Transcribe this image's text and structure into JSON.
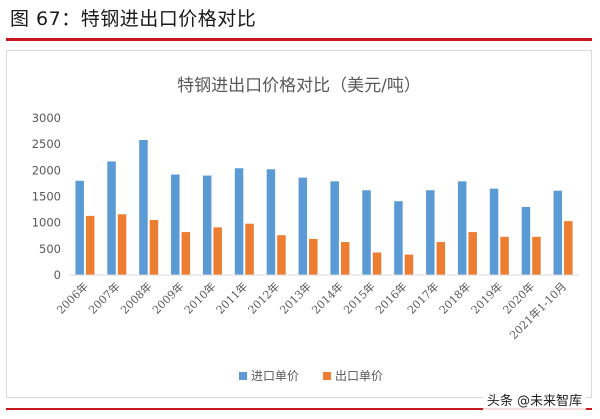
{
  "figure_heading": "图 67：特钢进出口价格对比",
  "watermark": "头条 @未来智库",
  "colors": {
    "accent_red": "#c8171e",
    "import": "#5b9bd5",
    "export": "#ed7d31",
    "axis": "#d9d9d9",
    "text": "#595959"
  },
  "chart_data": {
    "type": "bar",
    "title": "特钢进出口价格对比（美元/吨）",
    "xlabel": "",
    "ylabel": "",
    "ylim": [
      0,
      3000
    ],
    "yticks": [
      0,
      500,
      1000,
      1500,
      2000,
      2500,
      3000
    ],
    "grid": false,
    "legend_position": "bottom",
    "categories": [
      "2006年",
      "2007年",
      "2008年",
      "2009年",
      "2010年",
      "2011年",
      "2012年",
      "2013年",
      "2014年",
      "2015年",
      "2016年",
      "2017年",
      "2018年",
      "2019年",
      "2020年",
      "2021年1-10月"
    ],
    "series": [
      {
        "name": "进口单价",
        "color": "#5b9bd5",
        "values": [
          1800,
          2170,
          2580,
          1920,
          1900,
          2040,
          2020,
          1860,
          1790,
          1620,
          1410,
          1620,
          1790,
          1650,
          1300,
          1610
        ]
      },
      {
        "name": "出口单价",
        "color": "#ed7d31",
        "values": [
          1130,
          1160,
          1050,
          820,
          910,
          980,
          760,
          690,
          630,
          430,
          390,
          630,
          820,
          730,
          730,
          1030
        ]
      }
    ]
  }
}
